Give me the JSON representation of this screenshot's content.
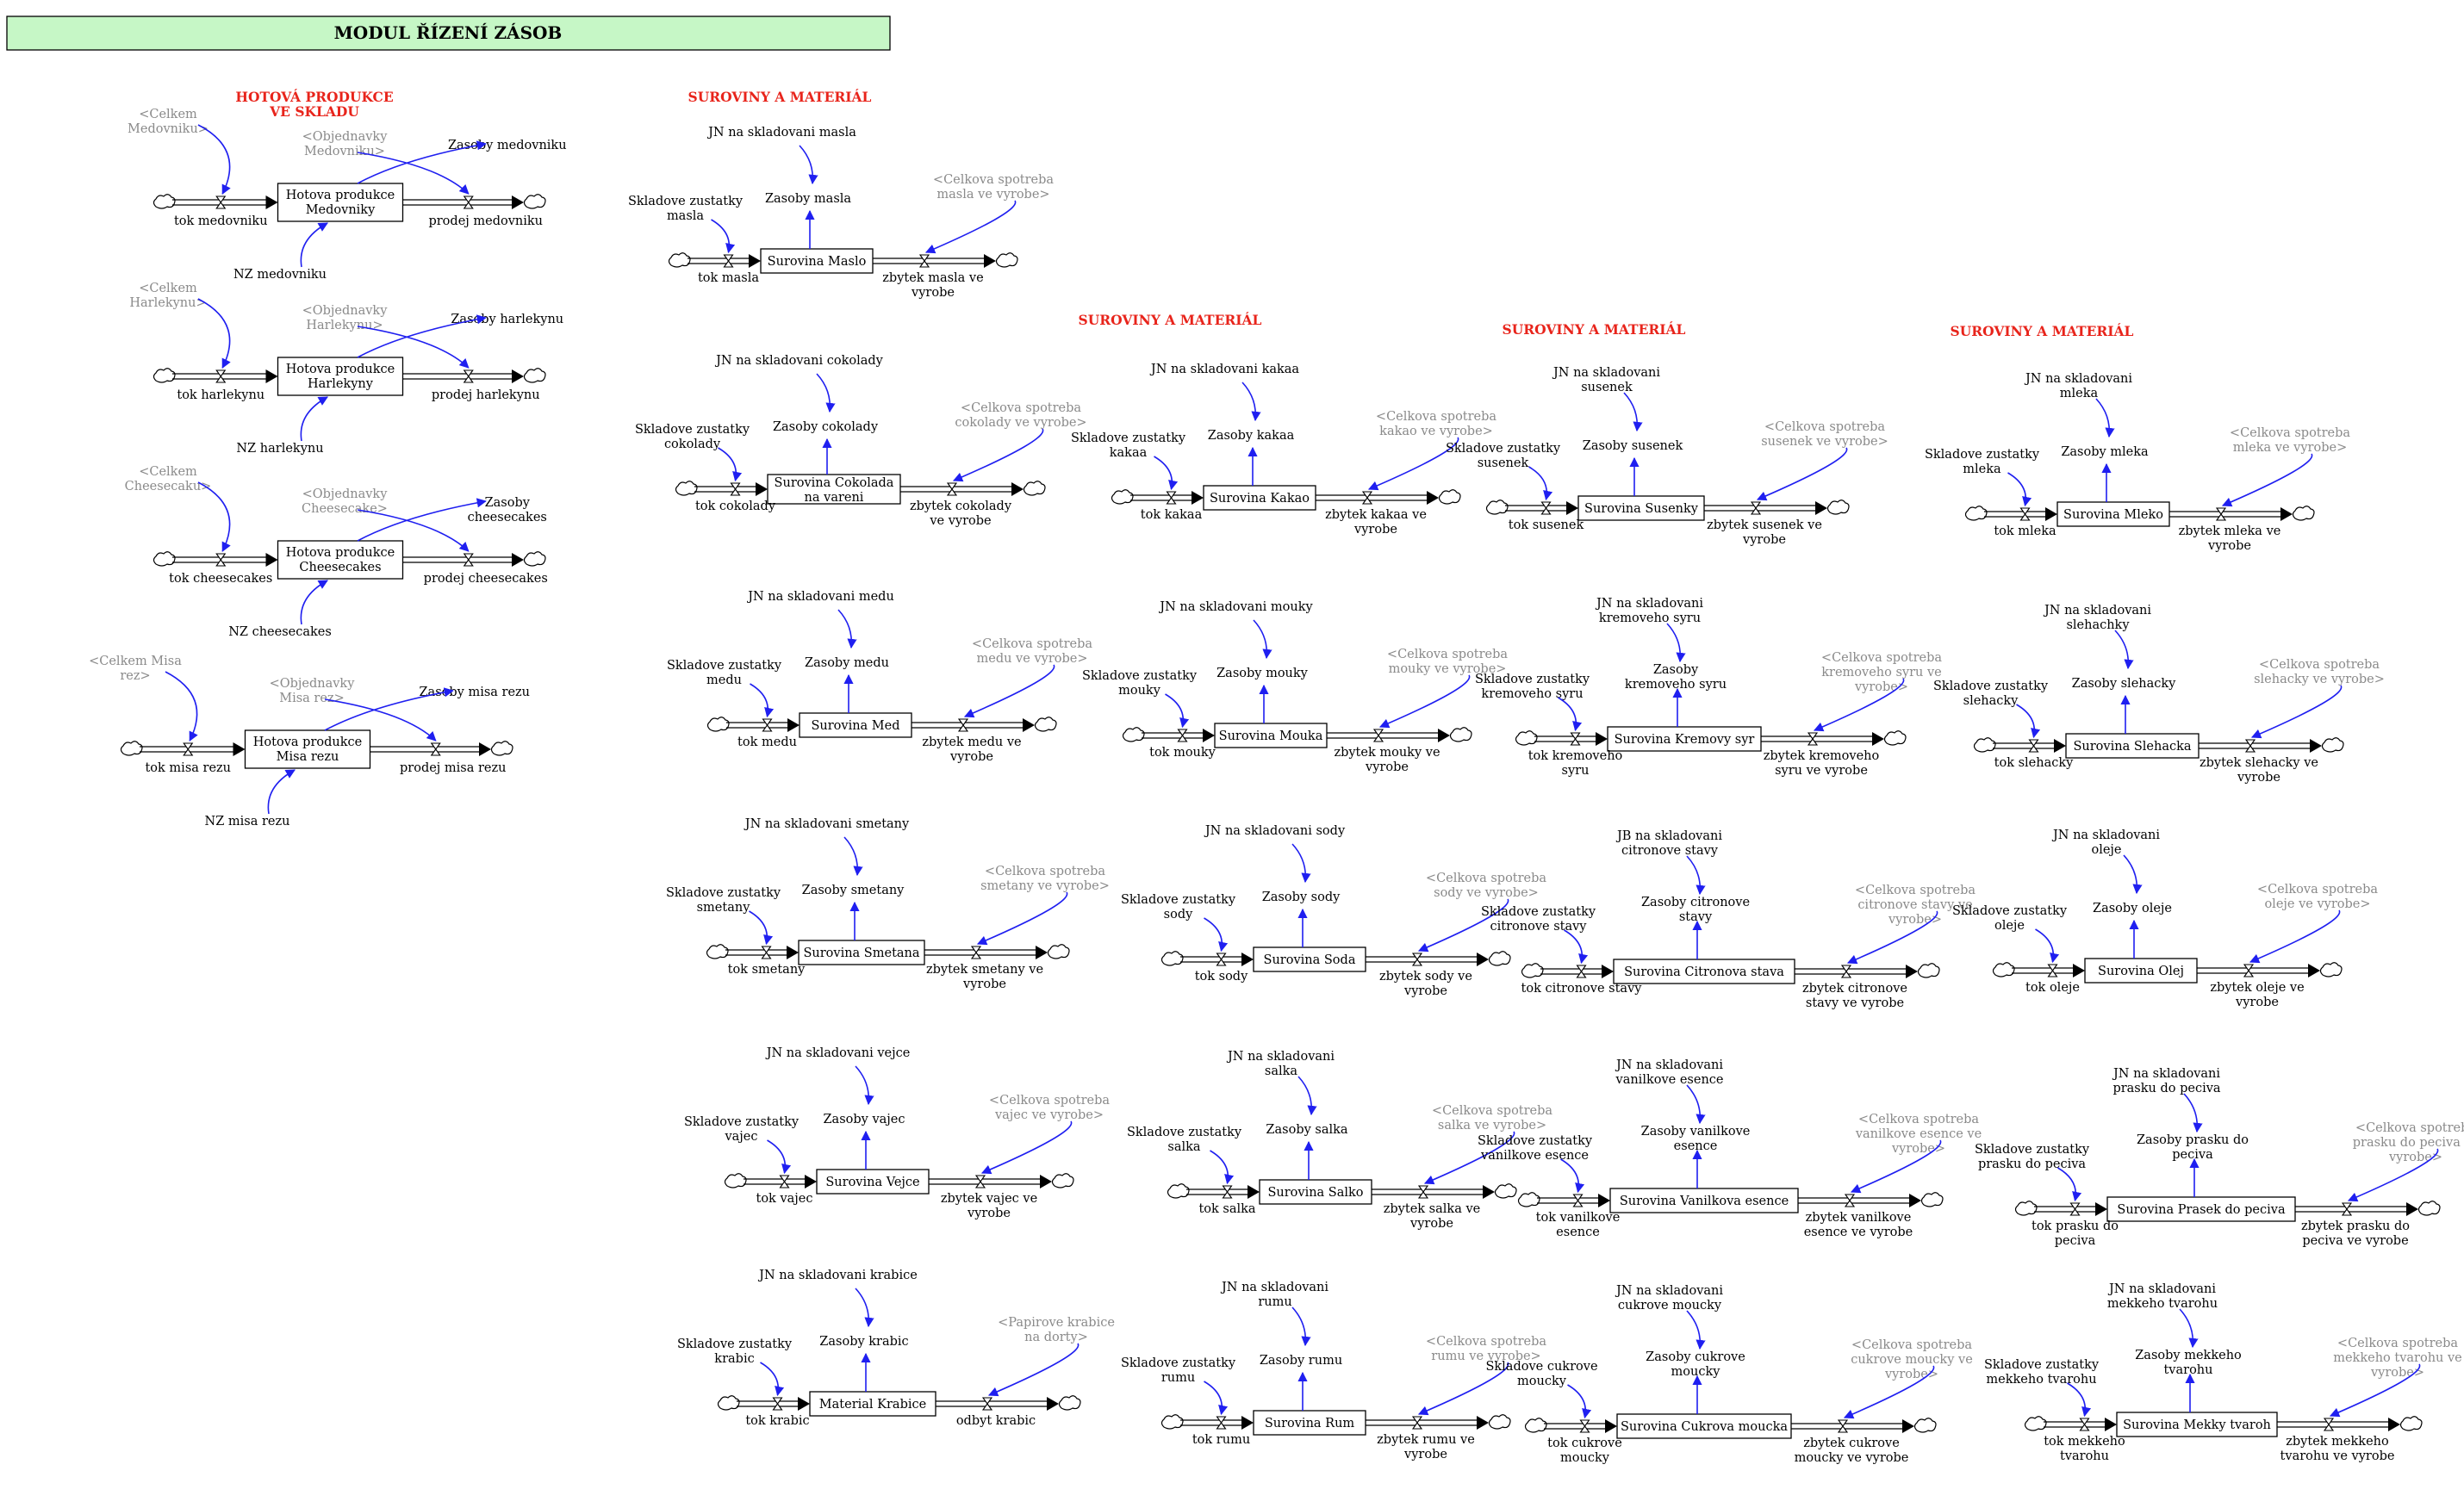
{
  "title": "MODUL ŘÍZENÍ ZÁSOB",
  "title_color": "#c6f7c6",
  "link_color": "#1f1ff0",
  "section_headers": [
    "HOTOVÁ PRODUKCE\nVE SKLADU",
    "SUROVINY A MATERIÁL",
    "SUROVINY A MATERIÁL",
    "SUROVINY A MATERIÁL",
    "SUROVINY A MATERIÁL"
  ],
  "products": [
    {
      "stock": "Hotova produkce\nMedovniky",
      "inflow": "tok medovniku",
      "outflow": "prodej medovniku",
      "celkem": "<Celkem\nMedovniku>",
      "objednavky": "<Objednavky\nMedovniku>",
      "zasoby": "Zasoby medovniku",
      "nz": "NZ medovniku"
    },
    {
      "stock": "Hotova produkce\nHarlekyny",
      "inflow": "tok harlekynu",
      "outflow": "prodej harlekynu",
      "celkem": "<Celkem\nHarlekynu>",
      "objednavky": "<Objednavky\nHarlekynu>",
      "zasoby": "Zasoby harlekynu",
      "nz": "NZ harlekynu"
    },
    {
      "stock": "Hotova produkce\nCheesecakes",
      "inflow": "tok cheesecakes",
      "outflow": "prodej cheesecakes",
      "celkem": "<Celkem\nCheesecaku>",
      "objednavky": "<Objednavky\nCheesecake>",
      "zasoby": "Zasoby\ncheesecakes",
      "nz": "NZ cheesecakes"
    },
    {
      "stock": "Hotova produkce\nMisa rezu",
      "inflow": "tok misa rezu",
      "outflow": "prodej misa rezu",
      "celkem": "<Celkem Misa\nrez>",
      "objednavky": "<Objednavky\nMisa rez>",
      "zasoby": "Zasoby misa rezu",
      "nz": "NZ misa rezu"
    }
  ],
  "materials": [
    {
      "stock": "Surovina Maslo",
      "inflow": "tok masla",
      "outflow": "zbytek masla ve\nvyrobe",
      "skladove": "Skladove zustatky\nmasla",
      "jn": "JN na skladovani masla",
      "zasoby": "Zasoby masla",
      "spotreba": "<Celkova spotreba\nmasla ve vyrobe>"
    },
    {
      "stock": "Surovina Cokolada\nna vareni",
      "inflow": "tok cokolady",
      "outflow": "zbytek cokolady\nve vyrobe",
      "skladove": "Skladove zustatky\ncokolady",
      "jn": "JN na skladovani cokolady",
      "zasoby": "Zasoby cokolady",
      "spotreba": "<Celkova spotreba\ncokolady ve vyrobe>"
    },
    {
      "stock": "Surovina Med",
      "inflow": "tok medu",
      "outflow": "zbytek medu ve\nvyrobe",
      "skladove": "Skladove zustatky\nmedu",
      "jn": "JN na skladovani medu",
      "zasoby": "Zasoby medu",
      "spotreba": "<Celkova spotreba\nmedu ve vyrobe>"
    },
    {
      "stock": "Surovina Smetana",
      "inflow": "tok smetany",
      "outflow": "zbytek smetany ve\nvyrobe",
      "skladove": "Skladove zustatky\nsmetany",
      "jn": "JN na skladovani smetany",
      "zasoby": "Zasoby smetany",
      "spotreba": "<Celkova spotreba\nsmetany ve vyrobe>"
    },
    {
      "stock": "Surovina Vejce",
      "inflow": "tok vajec",
      "outflow": "zbytek vajec ve\nvyrobe",
      "skladove": "Skladove zustatky\nvajec",
      "jn": "JN na skladovani vejce",
      "zasoby": "Zasoby vajec",
      "spotreba": "<Celkova spotreba\nvajec ve vyrobe>"
    },
    {
      "stock": "Material Krabice",
      "inflow": "tok krabic",
      "outflow": "odbyt krabic",
      "skladove": "Skladove zustatky\nkrabic",
      "jn": "JN na skladovani krabice",
      "zasoby": "Zasoby krabic",
      "spotreba": "<Papirove krabice\nna dorty>"
    },
    {
      "stock": "Surovina Kakao",
      "inflow": "tok kakaa",
      "outflow": "zbytek kakaa ve\nvyrobe",
      "skladove": "Skladove zustatky\nkakaa",
      "jn": "JN na skladovani kakaa",
      "zasoby": "Zasoby kakaa",
      "spotreba": "<Celkova spotreba\nkakao ve vyrobe>"
    },
    {
      "stock": "Surovina Mouka",
      "inflow": "tok mouky",
      "outflow": "zbytek mouky ve\nvyrobe",
      "skladove": "Skladove zustatky\nmouky",
      "jn": "JN na skladovani mouky",
      "zasoby": "Zasoby mouky",
      "spotreba": "<Celkova spotreba\nmouky ve vyrobe>"
    },
    {
      "stock": "Surovina Soda",
      "inflow": "tok sody",
      "outflow": "zbytek sody ve\nvyrobe",
      "skladove": "Skladove zustatky\nsody",
      "jn": "JN na skladovani sody",
      "zasoby": "Zasoby sody",
      "spotreba": "<Celkova spotreba\nsody ve vyrobe>"
    },
    {
      "stock": "Surovina Salko",
      "inflow": "tok salka",
      "outflow": "zbytek salka ve\nvyrobe",
      "skladove": "Skladove zustatky\nsalka",
      "jn": "JN na skladovani\nsalka",
      "zasoby": "Zasoby salka",
      "spotreba": "<Celkova spotreba\nsalka ve vyrobe>"
    },
    {
      "stock": "Surovina Rum",
      "inflow": "tok rumu",
      "outflow": "zbytek rumu ve\nvyrobe",
      "skladove": "Skladove zustatky\nrumu",
      "jn": "JN na skladovani\nrumu",
      "zasoby": "Zasoby rumu",
      "spotreba": "<Celkova spotreba\nrumu ve vyrobe>"
    },
    {
      "stock": "Surovina Susenky",
      "inflow": "tok susenek",
      "outflow": "zbytek susenek ve\nvyrobe",
      "skladove": "Skladove zustatky\nsusenek",
      "jn": "JN na skladovani\nsusenek",
      "zasoby": "Zasoby susenek",
      "spotreba": "<Celkova spotreba\nsusenek ve vyrobe>"
    },
    {
      "stock": "Surovina Kremovy syr",
      "inflow": "tok kremoveho\nsyru",
      "outflow": "zbytek kremoveho\nsyru ve vyrobe",
      "skladove": "Skladove zustatky\nkremoveho syru",
      "jn": "JN na skladovani\nkremoveho syru",
      "zasoby": "Zasoby\nkremoveho syru",
      "spotreba": "<Celkova spotreba\nkremoveho syru ve\nvyrobe>"
    },
    {
      "stock": "Surovina Citronova stava",
      "inflow": "tok citronove stavy",
      "outflow": "zbytek citronove\nstavy ve vyrobe",
      "skladove": "Skladove zustatky\ncitronove stavy",
      "jn": "JB na skladovani\ncitronove stavy",
      "zasoby": "Zasoby citronove\nstavy",
      "spotreba": "<Celkova spotreba\ncitronove stavy ve\nvyrobe>"
    },
    {
      "stock": "Surovina Vanilkova esence",
      "inflow": "tok vanilkove\nesence",
      "outflow": "zbytek vanilkove\nesence ve vyrobe",
      "skladove": "Skladove zustatky\nvanilkove esence",
      "jn": "JN na skladovani\nvanilkove esence",
      "zasoby": "Zasoby vanilkove\nesence",
      "spotreba": "<Celkova spotreba\nvanilkove esence ve\nvyrobe>"
    },
    {
      "stock": "Surovina Cukrova moucka",
      "inflow": "tok cukrove\nmoucky",
      "outflow": "zbytek cukrove\nmoucky ve vyrobe",
      "skladove": "Skladove cukrove\nmoucky",
      "jn": "JN na skladovani\ncukrove moucky",
      "zasoby": "Zasoby cukrove\nmoucky",
      "spotreba": "<Celkova spotreba\ncukrove moucky ve\nvyrobe>"
    },
    {
      "stock": "Surovina Mleko",
      "inflow": "tok mleka",
      "outflow": "zbytek mleka ve\nvyrobe",
      "skladove": "Skladove zustatky\nmleka",
      "jn": "JN na skladovani\nmleka",
      "zasoby": "Zasoby mleka",
      "spotreba": "<Celkova spotreba\nmleka ve vyrobe>"
    },
    {
      "stock": "Surovina Slehacka",
      "inflow": "tok slehacky",
      "outflow": "zbytek slehacky ve\nvyrobe",
      "skladove": "Skladove zustatky\nslehacky",
      "jn": "JN na skladovani\nslehachky",
      "zasoby": "Zasoby slehacky",
      "spotreba": "<Celkova spotreba\nslehacky ve vyrobe>"
    },
    {
      "stock": "Surovina Olej",
      "inflow": "tok oleje",
      "outflow": "zbytek oleje ve\nvyrobe",
      "skladove": "Skladove zustatky\noleje",
      "jn": "JN na skladovani\noleje",
      "zasoby": "Zasoby oleje",
      "spotreba": "<Celkova spotreba\noleje ve vyrobe>"
    },
    {
      "stock": "Surovina Prasek do peciva",
      "inflow": "tok prasku do\npeciva",
      "outflow": "zbytek prasku do\npeciva ve vyrobe",
      "skladove": "Skladove zustatky\nprasku do peciva",
      "jn": "JN na skladovani\nprasku do peciva",
      "zasoby": "Zasoby prasku do\npeciva",
      "spotreba": "<Celkova spotreba\nprasku do peciva ve\nvyrobe>"
    },
    {
      "stock": "Surovina Mekky tvaroh",
      "inflow": "tok mekkeho\ntvarohu",
      "outflow": "zbytek mekkeho\ntvarohu ve vyrobe",
      "skladove": "Skladove zustatky\nmekkeho tvarohu",
      "jn": "JN na skladovani\nmekkeho tvarohu",
      "zasoby": "Zasoby mekkeho\ntvarohu",
      "spotreba": "<Celkova spotreba\nmekkeho tvarohu ve\nvyrobe>"
    }
  ]
}
